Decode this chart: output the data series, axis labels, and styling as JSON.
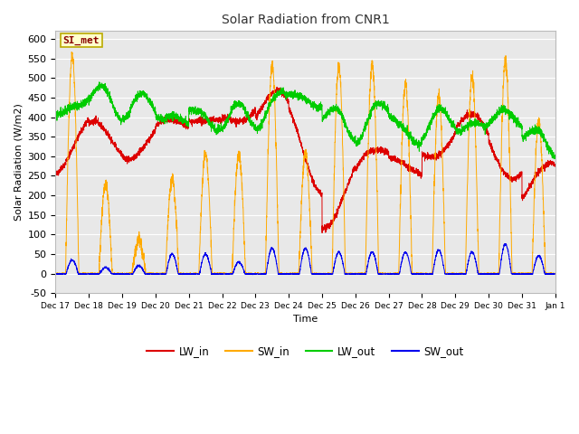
{
  "title": "Solar Radiation from CNR1",
  "xlabel": "Time",
  "ylabel": "Solar Radiation (W/m2)",
  "ylim": [
    -50,
    620
  ],
  "yticks": [
    -50,
    0,
    50,
    100,
    150,
    200,
    250,
    300,
    350,
    400,
    450,
    500,
    550,
    600
  ],
  "fig_bg": "#ffffff",
  "plot_bg": "#e8e8e8",
  "annotation_text": "SI_met",
  "annotation_bg": "#ffffcc",
  "annotation_border": "#bbaa00",
  "annotation_text_color": "#880000",
  "line_colors": {
    "LW_in": "#dd0000",
    "SW_in": "#ffaa00",
    "LW_out": "#00cc00",
    "SW_out": "#0000ee"
  },
  "x_tick_labels": [
    "Dec 17",
    "Dec 18",
    "Dec 19",
    "Dec 20",
    "Dec 21",
    "Dec 22",
    "Dec 23",
    "Dec 24",
    "Dec 25",
    "Dec 26",
    "Dec 27",
    "Dec 28",
    "Dec 29",
    "Dec 30",
    "Dec 31",
    "Jan 1"
  ],
  "num_days": 15,
  "points_per_day": 288
}
